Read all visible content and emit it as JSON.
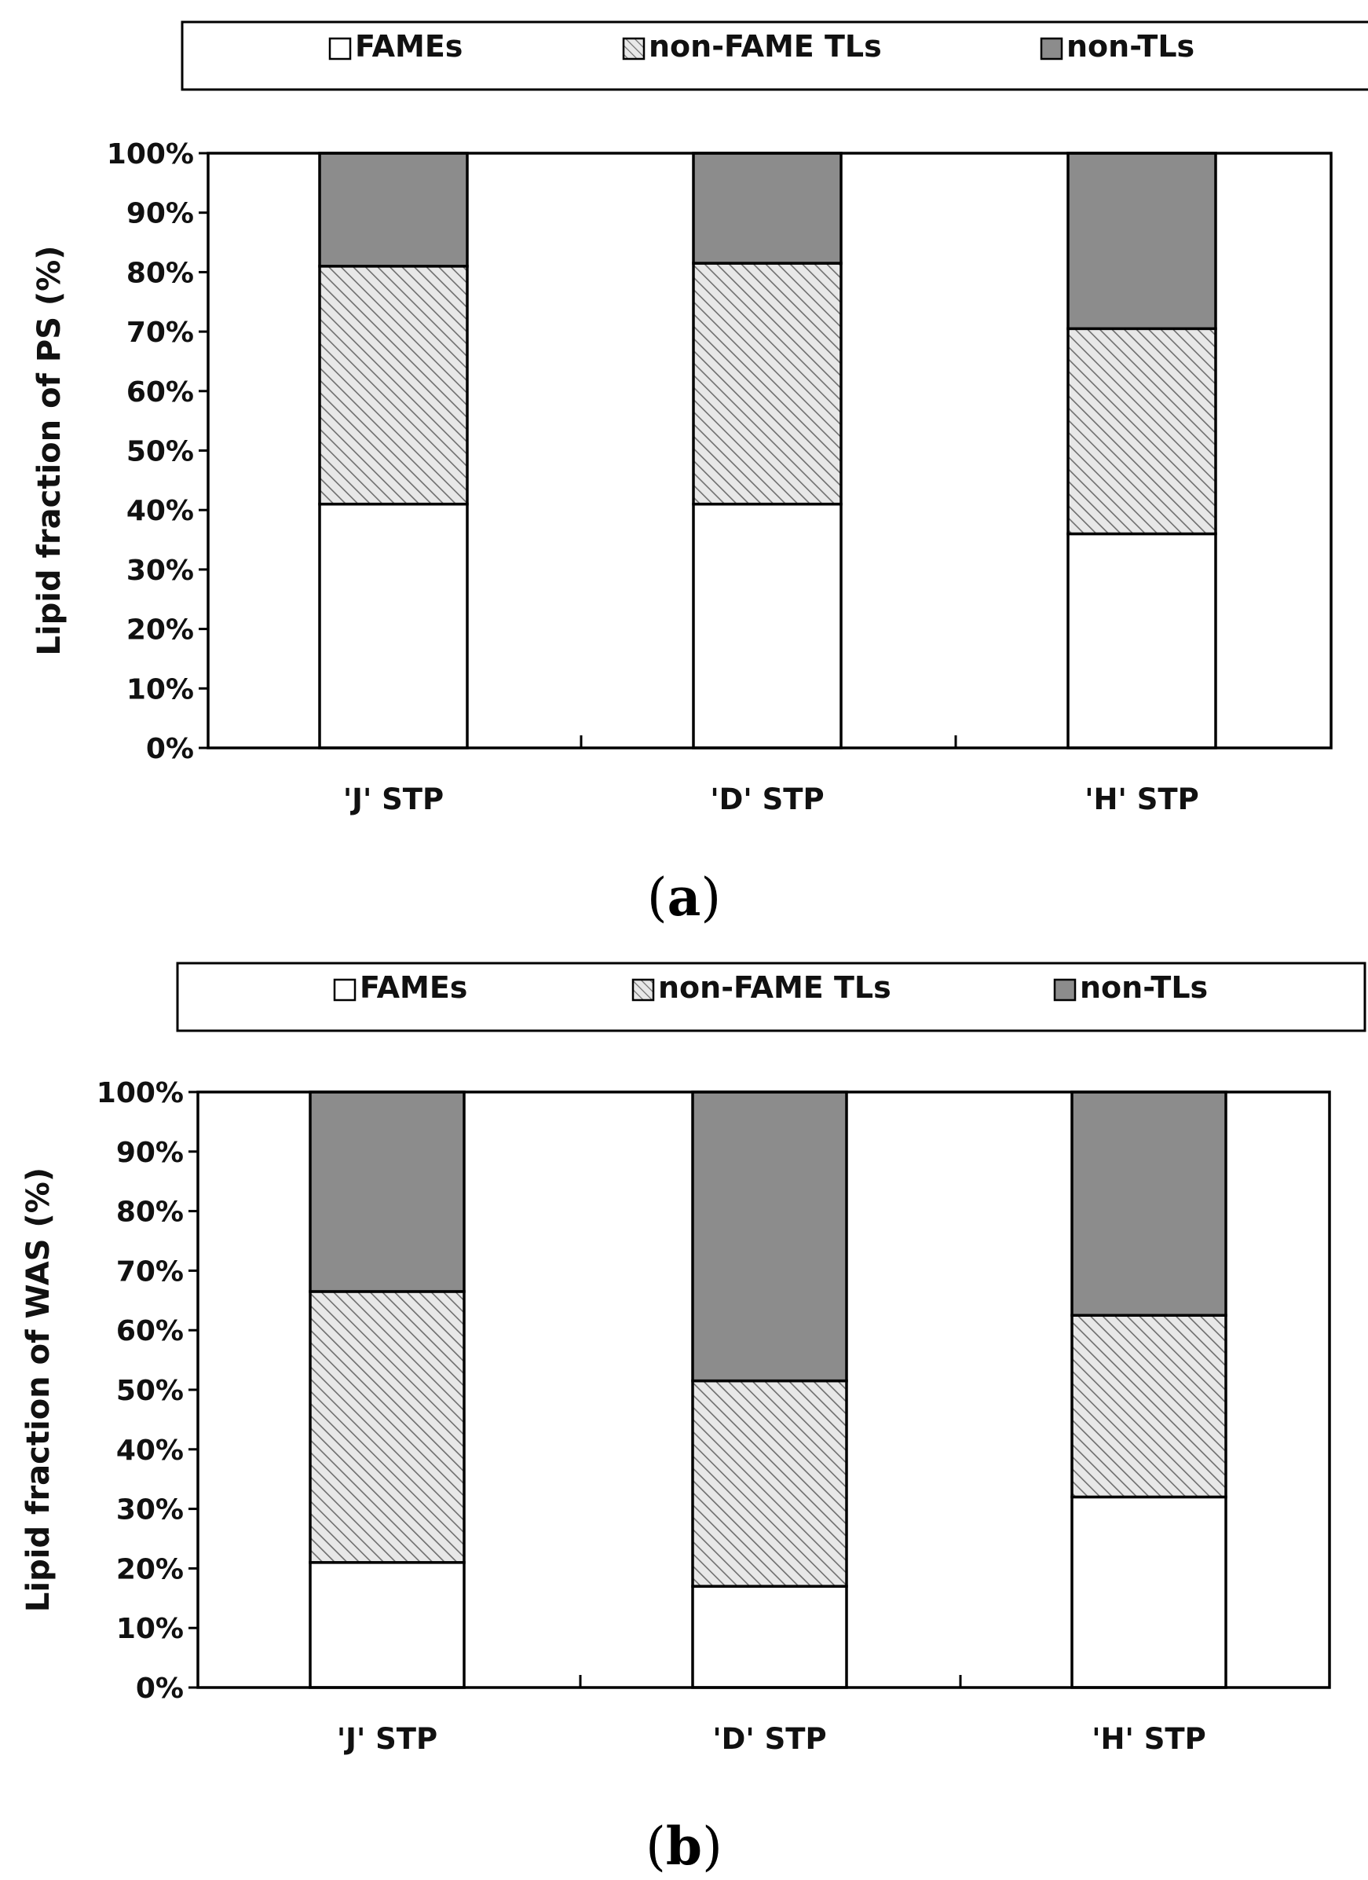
{
  "colors": {
    "fames": "#ffffff",
    "non_fame_tls": "#e8e8e8",
    "hatch": "#6e6e6e",
    "non_tls": "#8c8c8c",
    "stroke": "#000000"
  },
  "chart_data": [
    {
      "type": "bar",
      "stacked": true,
      "percent": true,
      "caption_open": "(",
      "caption_letter": "a",
      "caption_close": ")",
      "ylabel": "Lipid fraction of PS (%)",
      "xlabel": "",
      "ylim": [
        0,
        100
      ],
      "yticks": [
        "0%",
        "10%",
        "20%",
        "30%",
        "40%",
        "50%",
        "60%",
        "70%",
        "80%",
        "90%",
        "100%"
      ],
      "legend_position": "top",
      "categories": [
        "'J' STP",
        "'D' STP",
        "'H' STP"
      ],
      "series": [
        {
          "name": "FAMEs",
          "values": [
            41,
            41,
            36
          ]
        },
        {
          "name": "non-FAME TLs",
          "values": [
            40,
            40.5,
            34.5
          ]
        },
        {
          "name": "non-TLs",
          "values": [
            19,
            18.5,
            29.5
          ]
        }
      ]
    },
    {
      "type": "bar",
      "stacked": true,
      "percent": true,
      "caption_open": "(",
      "caption_letter": "b",
      "caption_close": ")",
      "ylabel": "Lipid fraction of WAS (%)",
      "xlabel": "",
      "ylim": [
        0,
        100
      ],
      "yticks": [
        "0%",
        "10%",
        "20%",
        "30%",
        "40%",
        "50%",
        "60%",
        "70%",
        "80%",
        "90%",
        "100%"
      ],
      "legend_position": "top",
      "categories": [
        "'J' STP",
        "'D' STP",
        "'H' STP"
      ],
      "series": [
        {
          "name": "FAMEs",
          "values": [
            21,
            17,
            32
          ]
        },
        {
          "name": "non-FAME TLs",
          "values": [
            45.5,
            34.5,
            30.5
          ]
        },
        {
          "name": "non-TLs",
          "values": [
            33.5,
            48.5,
            37.5
          ]
        }
      ]
    }
  ]
}
